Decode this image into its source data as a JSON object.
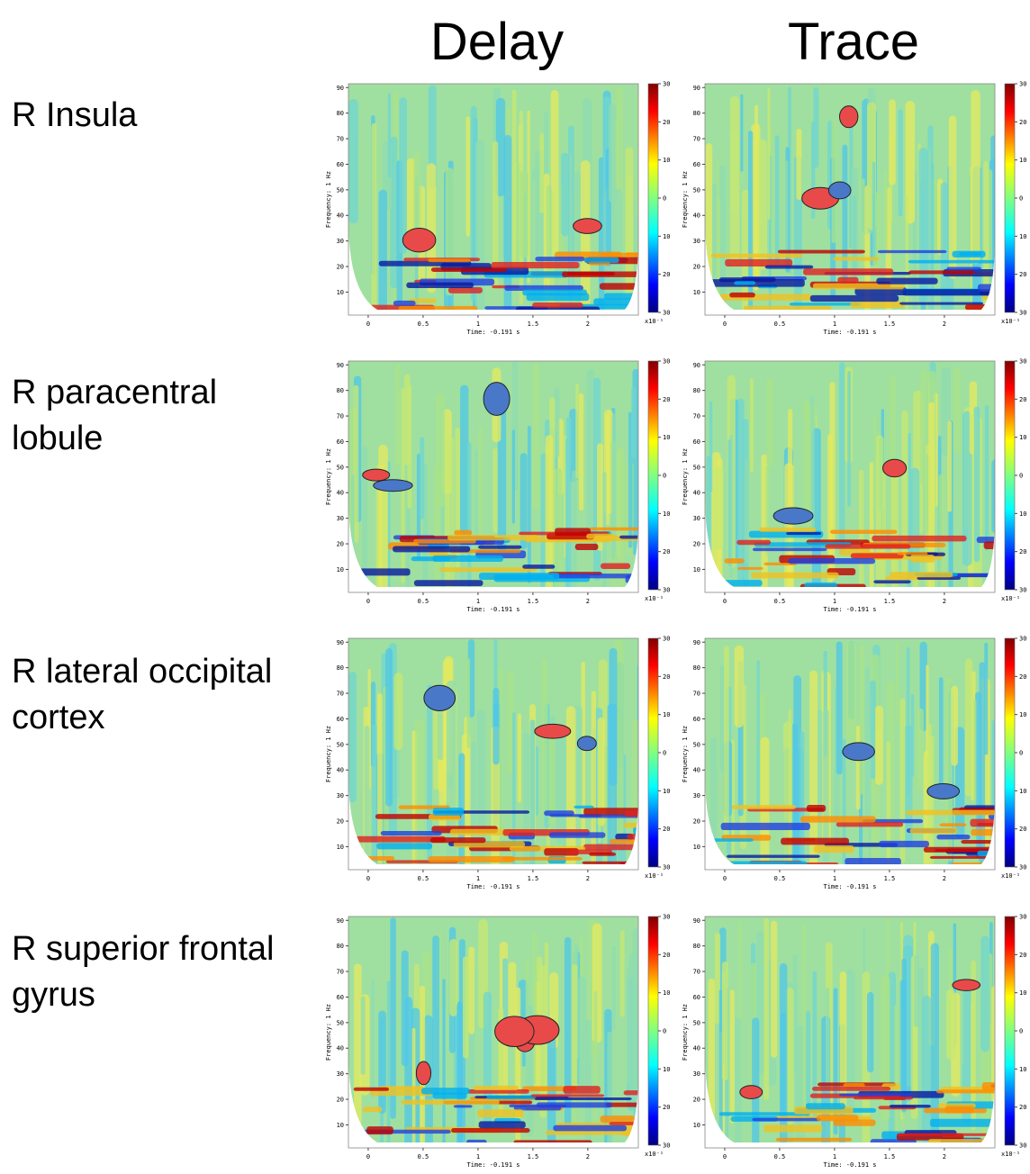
{
  "columns": [
    "Delay",
    "Trace"
  ],
  "rows": [
    "R Insula",
    "R paracentral\nlobule",
    "R lateral occipital\ncortex",
    "R superior frontal\ngyrus"
  ],
  "axes": {
    "xlabel": "Time: -0.191 s",
    "ylabel": "Frequency: 1 Hz",
    "xlim": [
      -0.18,
      2.46
    ],
    "xticks": [
      0,
      0.5,
      1,
      1.5,
      2
    ],
    "ylim": [
      1,
      91.5
    ],
    "yticks": [
      10,
      20,
      30,
      40,
      50,
      60,
      70,
      80,
      90
    ],
    "colorbar_lim": [
      -30,
      30
    ],
    "colorbar_ticks": [
      30,
      20,
      10,
      0,
      {
        "value": -10,
        "label": "10"
      },
      {
        "value": -20,
        "label": "20"
      },
      {
        "value": -30,
        "label": "30"
      }
    ],
    "colorbar_unit": "x10⁻¹"
  }
}
